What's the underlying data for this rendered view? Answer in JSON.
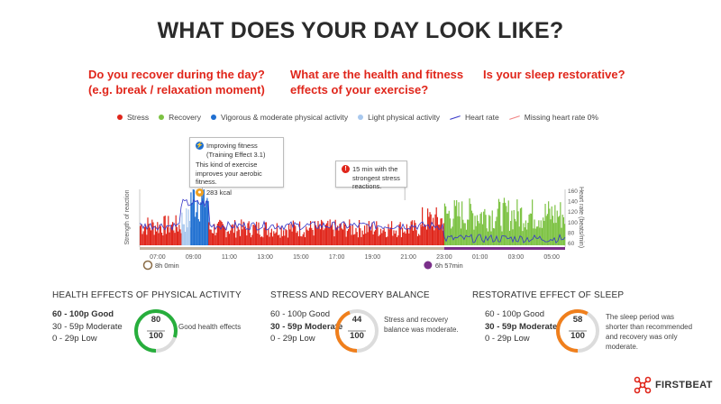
{
  "title": "WHAT DOES YOUR DAY LOOK LIKE?",
  "questions": [
    "Do you recover during the day?\n(e.g. break / relaxation moment)",
    "What are the health and fitness\neffects of your exercise?",
    "Is your sleep restorative?"
  ],
  "legend": [
    {
      "label": "Stress",
      "color": "#e0261b",
      "kind": "dot"
    },
    {
      "label": "Recovery",
      "color": "#7cc242",
      "kind": "dot"
    },
    {
      "label": "Vigorous & moderate physical activity",
      "color": "#1f6fd1",
      "kind": "dot"
    },
    {
      "label": "Light physical activity",
      "color": "#a8c8ee",
      "kind": "dot"
    },
    {
      "label": "Heart rate",
      "color": "#3535c8",
      "kind": "line"
    },
    {
      "label": "Missing heart rate 0%",
      "color": "#f08080",
      "kind": "line"
    }
  ],
  "callouts": {
    "fitness": {
      "line1": "Improving fitness",
      "line2": "(Training Effect 3.1)",
      "body": "This kind of exercise improves your aerobic fitness.",
      "kcal": "283 kcal"
    },
    "stress": {
      "text": "15 min with the strongest stress reactions."
    }
  },
  "chart_data": {
    "type": "bar",
    "x_ticks": [
      "07:00",
      "09:00",
      "11:00",
      "13:00",
      "15:00",
      "17:00",
      "19:00",
      "21:00",
      "23:00",
      "01:00",
      "03:00",
      "05:00"
    ],
    "ylabel": "Strength of reaction",
    "y2label": "Heart rate (beats/min)",
    "y2_ticks": [
      60,
      80,
      100,
      120,
      140,
      160
    ],
    "segments": [
      {
        "from": "06:00",
        "to": "08:20",
        "category": "Stress",
        "level": 0.35
      },
      {
        "from": "08:20",
        "to": "08:50",
        "category": "Light physical activity",
        "level": 0.45
      },
      {
        "from": "08:50",
        "to": "09:50",
        "category": "Vigorous & moderate physical activity",
        "level": 0.85
      },
      {
        "from": "09:50",
        "to": "21:45",
        "category": "Stress",
        "level": 0.3
      },
      {
        "from": "21:45",
        "to": "23:00",
        "category": "Stress",
        "level": 0.45
      },
      {
        "from": "23:00",
        "to": "05:45",
        "category": "Recovery",
        "level": 0.55
      }
    ],
    "awake_label": "8h 0min",
    "sleep_label": "6h 57min"
  },
  "sections": [
    {
      "title": "HEALTH EFFECTS OF PHYSICAL ACTIVITY",
      "scale": [
        "60 - 100p Good",
        "30 - 59p Moderate",
        "0 - 29p Low"
      ],
      "bold_index": 0,
      "score": "80",
      "max": "100",
      "fraction": 0.8,
      "color": "#27ae3c",
      "desc": "Good health effects"
    },
    {
      "title": "STRESS AND RECOVERY BALANCE",
      "scale": [
        "60 - 100p Good",
        "30 - 59p Moderate",
        "0 - 29p Low"
      ],
      "bold_index": 1,
      "score": "44",
      "max": "100",
      "fraction": 0.44,
      "color": "#f07f1c",
      "desc": "Stress and recovery balance was moderate."
    },
    {
      "title": "RESTORATIVE EFFECT OF SLEEP",
      "scale": [
        "60 - 100p Good",
        "30 - 59p Moderate",
        "0 - 29p Low"
      ],
      "bold_index": 1,
      "score": "58",
      "max": "100",
      "fraction": 0.58,
      "color": "#f07f1c",
      "desc": "The sleep period was shorter than recommended and recovery was only moderate."
    }
  ],
  "brand": "FIRSTBEAT",
  "brand_color": "#e0261b"
}
